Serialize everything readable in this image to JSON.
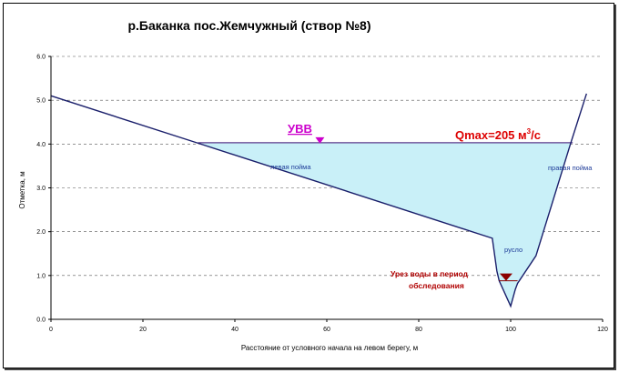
{
  "chart_data": {
    "type": "line",
    "title": "р.Баканка пос.Жемчужный (створ №8)",
    "xlabel": "Расстояние от условного начала на левом берегу, м",
    "ylabel": "Отметка, м",
    "xlim": [
      0,
      120
    ],
    "ylim": [
      0.0,
      6.0
    ],
    "x_ticks": [
      "0",
      "20",
      "40",
      "60",
      "80",
      "100",
      "120"
    ],
    "y_ticks": [
      "0.0",
      "1.0",
      "2.0",
      "3.0",
      "4.0",
      "5.0",
      "6.0"
    ],
    "grid": "horizontal-dashed",
    "series": [
      {
        "x": [
          0,
          32,
          96,
          97,
          97.5,
          100,
          101,
          101.5,
          105.5,
          113,
          116.5
        ],
        "y": [
          5.1,
          4.02,
          1.85,
          1.1,
          0.88,
          0.3,
          0.68,
          0.82,
          1.45,
          4.0,
          5.15
        ]
      }
    ],
    "water_level": {
      "y": 4.03,
      "x_from": 32,
      "x_to": 113.5
    },
    "survey_water_level": {
      "y": 0.88,
      "x_from": 97.5,
      "x_to": 101.5
    },
    "annotations": {
      "uvv": "УВВ",
      "qmax": "Qmax=205   м",
      "qmax_sup": "3",
      "qmax_unit": "/с",
      "left_floodplain": "левая пойма",
      "right_floodplain": "правая пойма",
      "channel": "русло",
      "survey_line1": "Урез воды в период",
      "survey_line2": "обследования"
    },
    "colors": {
      "profile": "#1a1f6b",
      "water_fill": "#c9f0f8",
      "water_line": "#5a3a8c",
      "uvv": "#cc00cc",
      "qmax": "#dd0000",
      "survey_marker": "#8b0000"
    }
  }
}
